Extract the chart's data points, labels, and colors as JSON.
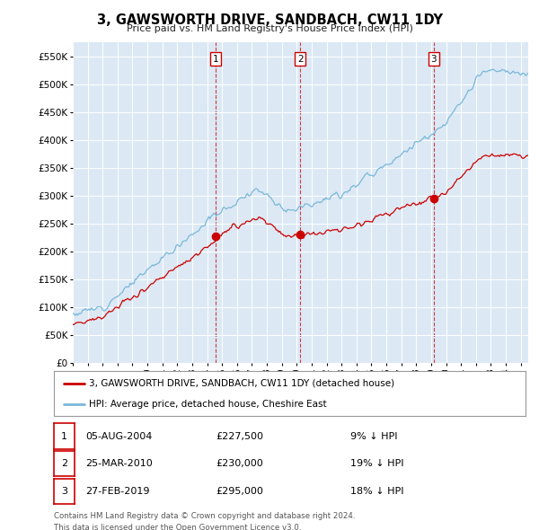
{
  "title": "3, GAWSWORTH DRIVE, SANDBACH, CW11 1DY",
  "subtitle": "Price paid vs. HM Land Registry's House Price Index (HPI)",
  "ylabel_ticks": [
    "£0",
    "£50K",
    "£100K",
    "£150K",
    "£200K",
    "£250K",
    "£300K",
    "£350K",
    "£400K",
    "£450K",
    "£500K",
    "£550K"
  ],
  "ytick_values": [
    0,
    50000,
    100000,
    150000,
    200000,
    250000,
    300000,
    350000,
    400000,
    450000,
    500000,
    550000
  ],
  "background_color": "#dce9f5",
  "plot_bg_color": "#dce9f5",
  "hpi_color": "#7ab8d9",
  "price_color": "#cc0000",
  "transactions": [
    {
      "date": "05-AUG-2004",
      "price": 227500,
      "label": "1",
      "hpi_pct": "9% ↓ HPI",
      "x": 2004.59
    },
    {
      "date": "25-MAR-2010",
      "price": 230000,
      "label": "2",
      "hpi_pct": "19% ↓ HPI",
      "x": 2010.23
    },
    {
      "date": "27-FEB-2019",
      "price": 295000,
      "label": "3",
      "hpi_pct": "18% ↓ HPI",
      "x": 2019.16
    }
  ],
  "legend_entries": [
    "3, GAWSWORTH DRIVE, SANDBACH, CW11 1DY (detached house)",
    "HPI: Average price, detached house, Cheshire East"
  ],
  "footer_lines": [
    "Contains HM Land Registry data © Crown copyright and database right 2024.",
    "This data is licensed under the Open Government Licence v3.0."
  ],
  "xstart": 1995,
  "xend": 2025,
  "ymin": 0,
  "ymax": 575000
}
